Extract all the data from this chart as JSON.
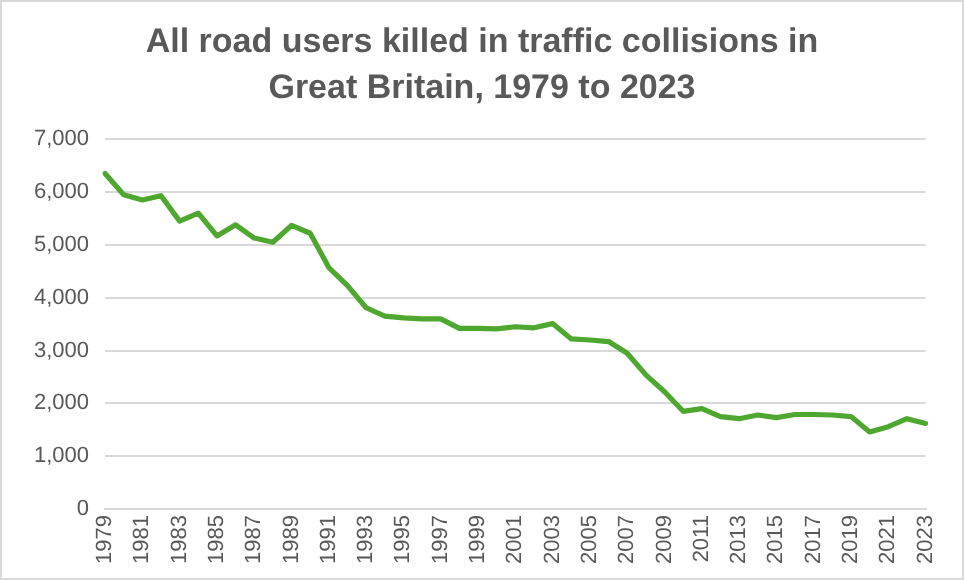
{
  "chart_data": {
    "type": "line",
    "title": "All road users killed in traffic collisions in Great Britain, 1979 to 2023",
    "categories": [
      "1979",
      null,
      "1981",
      null,
      "1983",
      null,
      "1985",
      null,
      "1987",
      null,
      "1989",
      null,
      "1991",
      null,
      "1993",
      null,
      "1995",
      null,
      "1997",
      null,
      "1999",
      null,
      "2001",
      null,
      "2003",
      null,
      "2005",
      null,
      "2007",
      null,
      "2009",
      null,
      "2011",
      null,
      "2013",
      null,
      "2015",
      null,
      "2017",
      null,
      "2019",
      null,
      "2021",
      null,
      "2023"
    ],
    "series": [
      {
        "color": "#4ea72e",
        "values": [
          6350,
          5950,
          5850,
          5930,
          5450,
          5600,
          5170,
          5380,
          5130,
          5050,
          5370,
          5220,
          4570,
          4230,
          3810,
          3650,
          3620,
          3600,
          3600,
          3420,
          3420,
          3410,
          3450,
          3430,
          3510,
          3220,
          3200,
          3170,
          2950,
          2540,
          2220,
          1850,
          1900,
          1750,
          1710,
          1780,
          1730,
          1790,
          1790,
          1780,
          1750,
          1460,
          1560,
          1710,
          1620
        ]
      }
    ],
    "ylim": [
      0,
      7000
    ],
    "yticks": [
      0,
      {
        "value": 1000,
        "label": "1,000"
      },
      {
        "value": 2000,
        "label": "2,000"
      },
      {
        "value": 3000,
        "label": "3,000"
      },
      {
        "value": 4000,
        "label": "4,000"
      },
      {
        "value": 5000,
        "label": "5,000"
      },
      {
        "value": 6000,
        "label": "6,000"
      },
      {
        "value": 7000,
        "label": "7,000"
      }
    ],
    "grid": "y",
    "legend": false,
    "marker": "none",
    "line_style": "solid"
  }
}
